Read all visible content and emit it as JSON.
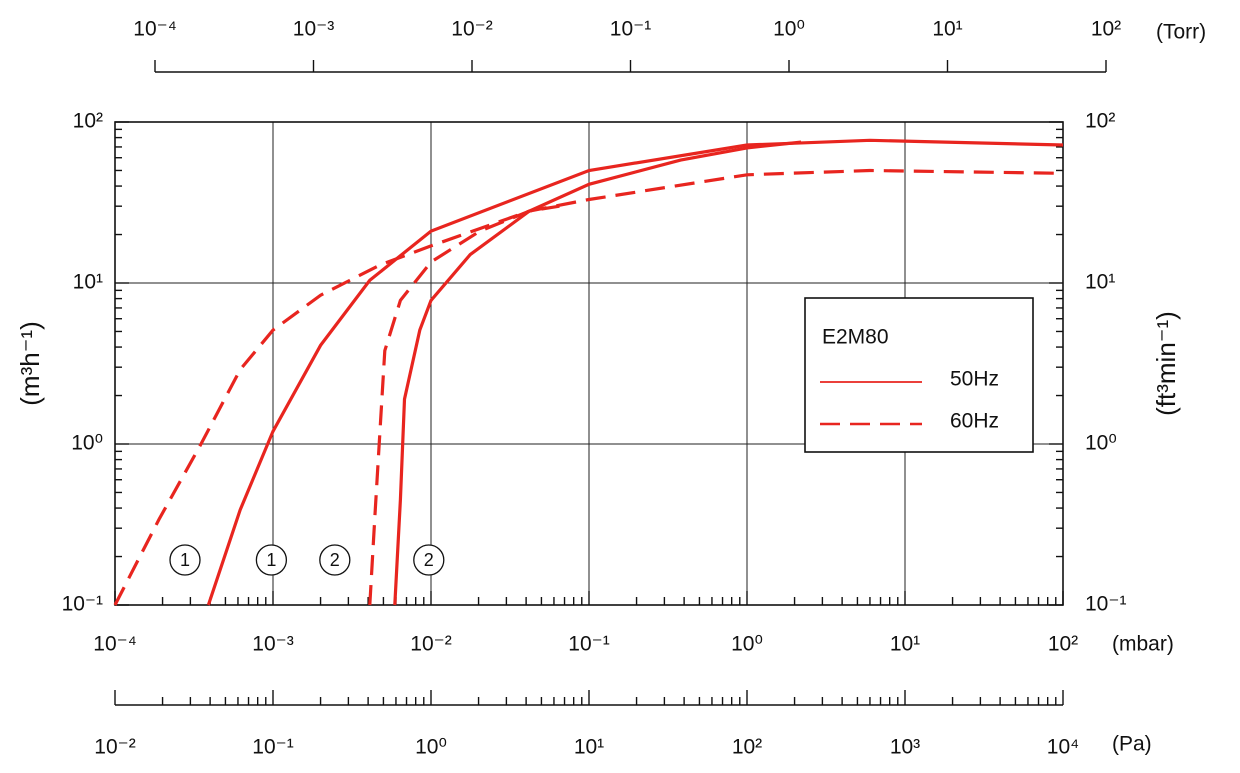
{
  "chart_data": {
    "type": "line",
    "x_scale": "log",
    "y_scale": "log",
    "xlim": [
      0.0001,
      100
    ],
    "xticks": [
      {
        "value": 0.0001,
        "label": "10⁻⁴"
      },
      {
        "value": 0.001,
        "label": "10⁻³"
      },
      {
        "value": 0.01,
        "label": "10⁻²"
      },
      {
        "value": 0.1,
        "label": "10⁻¹"
      },
      {
        "value": 1,
        "label": "10⁰"
      },
      {
        "value": 10,
        "label": "10¹"
      },
      {
        "value": 100,
        "label": "10²"
      }
    ],
    "xlabel": "(mbar)",
    "ylim": [
      0.1,
      100
    ],
    "yticks": [
      {
        "value": 0.1,
        "label": "10⁻¹"
      },
      {
        "value": 1,
        "label": "10⁰"
      },
      {
        "value": 10,
        "label": "10¹"
      },
      {
        "value": 100,
        "label": "10²"
      }
    ],
    "ylabel": "(m³h⁻¹)",
    "y2lim": [
      0.1,
      100
    ],
    "y2ticks": [
      {
        "value": 0.1,
        "label": "10⁻¹"
      },
      {
        "value": 1,
        "label": "10⁰"
      },
      {
        "value": 10,
        "label": "10¹"
      },
      {
        "value": 100,
        "label": "10²"
      }
    ],
    "y2label": "(ft³min⁻¹)",
    "top_axis": {
      "lim": [
        0.0001,
        100
      ],
      "label": "(Torr)",
      "ticks": [
        {
          "value": 0.0001,
          "label": "10⁻⁴"
        },
        {
          "value": 0.001,
          "label": "10⁻³"
        },
        {
          "value": 0.01,
          "label": "10⁻²"
        },
        {
          "value": 0.1,
          "label": "10⁻¹"
        },
        {
          "value": 1,
          "label": "10⁰"
        },
        {
          "value": 10,
          "label": "10¹"
        },
        {
          "value": 100,
          "label": "10²"
        }
      ]
    },
    "bottom_axis2": {
      "lim": [
        0.01,
        10000
      ],
      "label": "(Pa)",
      "ticks": [
        {
          "value": 0.01,
          "label": "10⁻²"
        },
        {
          "value": 0.1,
          "label": "10⁻¹"
        },
        {
          "value": 1,
          "label": "10⁰"
        },
        {
          "value": 10,
          "label": "10¹"
        },
        {
          "value": 100,
          "label": "10²"
        },
        {
          "value": 1000,
          "label": "10³"
        },
        {
          "value": 10000,
          "label": "10⁴"
        }
      ]
    },
    "grid": true,
    "minor_ticks": true,
    "legend": {
      "title": "E2M80",
      "position": "right"
    },
    "series": [
      {
        "name": "50Hz",
        "color": "#e8251f",
        "dashed": false,
        "curves": [
          {
            "label": "1",
            "x": [
              0.00039,
              0.00062,
              0.001,
              0.002,
              0.0041,
              0.01,
              0.1,
              1,
              6,
              100
            ],
            "values": [
              0.1,
              0.39,
              1.2,
              4.1,
              10.4,
              21,
              50,
              72,
              77,
              72
            ]
          },
          {
            "label": "2",
            "x": [
              0.0059,
              0.0064,
              0.0068,
              0.0085,
              0.01,
              0.0177,
              0.042,
              0.1,
              0.38,
              1,
              2.2
            ],
            "values": [
              0.1,
              0.45,
              1.9,
              5.1,
              7.8,
              15,
              28,
              41,
              58,
              69,
              75
            ]
          }
        ]
      },
      {
        "name": "60Hz",
        "color": "#e8251f",
        "dashed": true,
        "curves": [
          {
            "label": "1",
            "x": [
              0.0001,
              0.00019,
              0.00035,
              0.00062,
              0.001,
              0.002,
              0.0048,
              0.01,
              0.042,
              0.1,
              1,
              6,
              100
            ],
            "values": [
              0.1,
              0.34,
              1.0,
              2.9,
              5.1,
              8.4,
              13,
              17,
              28,
              33,
              47,
              50,
              48
            ]
          },
          {
            "label": "2",
            "x": [
              0.0041,
              0.0044,
              0.0048,
              0.0051,
              0.0064,
              0.01,
              0.0204,
              0.042,
              0.065
            ],
            "values": [
              0.1,
              0.34,
              1.4,
              3.8,
              7.8,
              13.5,
              21,
              28,
              30
            ]
          }
        ]
      }
    ]
  }
}
